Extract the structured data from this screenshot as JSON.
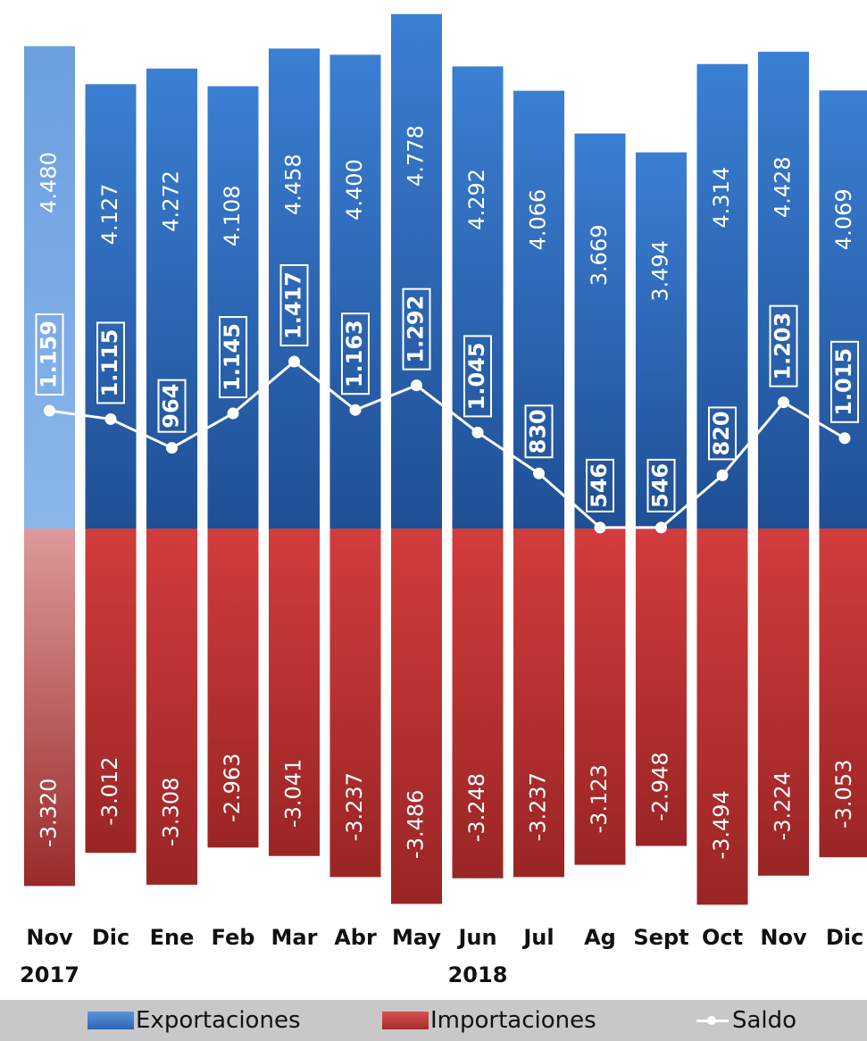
{
  "chart_data": {
    "type": "bar",
    "categories": [
      "Nov",
      "Dic",
      "Ene",
      "Feb",
      "Mar",
      "Abr",
      "May",
      "Jun",
      "Jul",
      "Ag",
      "Sept",
      "Oct",
      "Nov",
      "Dic"
    ],
    "years": [
      {
        "label": "2017",
        "category_index": 0
      },
      {
        "label": "2018",
        "category_index": 7
      }
    ],
    "series": [
      {
        "name": "Exportaciones",
        "type": "bar",
        "color": "#3a78c9",
        "values": [
          4480,
          4127,
          4272,
          4108,
          4458,
          4400,
          4778,
          4292,
          4066,
          3669,
          3494,
          4314,
          4428,
          4069
        ],
        "labels": [
          "4.480",
          "4.127",
          "4.272",
          "4.108",
          "4.458",
          "4.400",
          "4.778",
          "4.292",
          "4.066",
          "3.669",
          "3.494",
          "4.314",
          "4.428",
          "4.069"
        ]
      },
      {
        "name": "Importaciones",
        "type": "bar",
        "color": "#cc3a3a",
        "values": [
          -3320,
          -3012,
          -3308,
          -2963,
          -3041,
          -3237,
          -3486,
          -3248,
          -3237,
          -3123,
          -2948,
          -3494,
          -3224,
          -3053
        ],
        "labels": [
          "-3.320",
          "-3.012",
          "-3.308",
          "-2.963",
          "-3.041",
          "-3.237",
          "-3.486",
          "-3.248",
          "-3.237",
          "-3.123",
          "-2.948",
          "-3.494",
          "-3.224",
          "-3.053"
        ]
      },
      {
        "name": "Saldo",
        "type": "line",
        "color": "#ffffff",
        "values": [
          1159,
          1115,
          964,
          1145,
          1417,
          1163,
          1292,
          1045,
          830,
          546,
          546,
          820,
          1203,
          1015
        ],
        "labels": [
          "1.159",
          "1.115",
          "964",
          "1.145",
          "1.417",
          "1.163",
          "1.292",
          "1.045",
          "830",
          "546",
          "546",
          "820",
          "1.203",
          "1.015"
        ]
      }
    ],
    "highlighted_category_index": 0,
    "ylim": [
      -3800,
      4850
    ],
    "grid": false,
    "legend_position": "bottom"
  },
  "legend": {
    "items": [
      {
        "label": "Exportaciones",
        "kind": "bar",
        "color": "#3a78c9"
      },
      {
        "label": "Importaciones",
        "kind": "bar",
        "color": "#cc3a3a"
      },
      {
        "label": "Saldo",
        "kind": "line",
        "color": "#ffffff"
      }
    ]
  }
}
